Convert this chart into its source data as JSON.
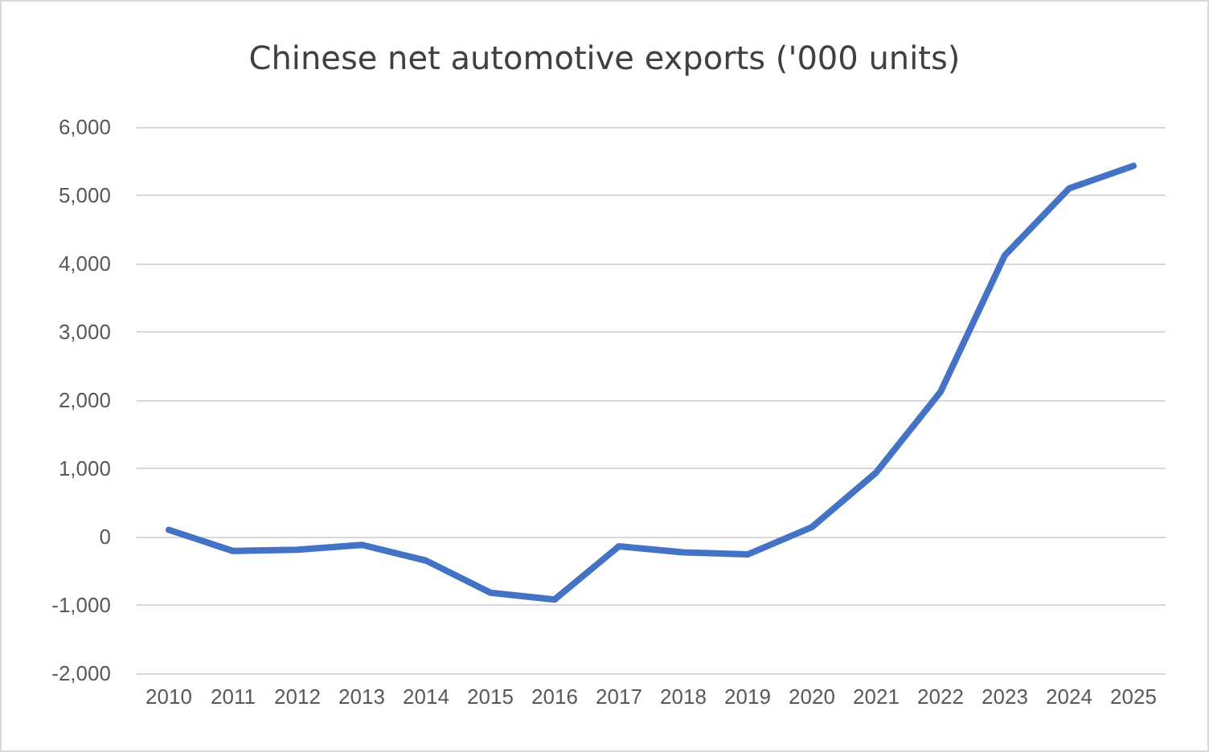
{
  "chart_data": {
    "type": "line",
    "title": "Chinese net automotive exports ('000 units)",
    "categories": [
      "2010",
      "2011",
      "2012",
      "2013",
      "2014",
      "2015",
      "2016",
      "2017",
      "2018",
      "2019",
      "2020",
      "2021",
      "2022",
      "2023",
      "2024",
      "2025"
    ],
    "series": [
      {
        "color": "#4472c4",
        "values": [
          100,
          -210,
          -190,
          -120,
          -350,
          -820,
          -920,
          -140,
          -230,
          -260,
          140,
          940,
          2120,
          4120,
          5100,
          5430
        ]
      }
    ],
    "ylim": [
      -2000,
      6000
    ],
    "yticks": [
      {
        "value": -2000,
        "label": "-2,000"
      },
      {
        "value": -1000,
        "label": "-1,000"
      },
      0,
      {
        "value": 1000,
        "label": "1,000"
      },
      {
        "value": 2000,
        "label": "2,000"
      },
      {
        "value": 3000,
        "label": "3,000"
      },
      {
        "value": 4000,
        "label": "4,000"
      },
      {
        "value": 5000,
        "label": "5,000"
      },
      {
        "value": 6000,
        "label": "6,000"
      }
    ],
    "grid": "y",
    "marker": "none",
    "line_style": "solid"
  }
}
